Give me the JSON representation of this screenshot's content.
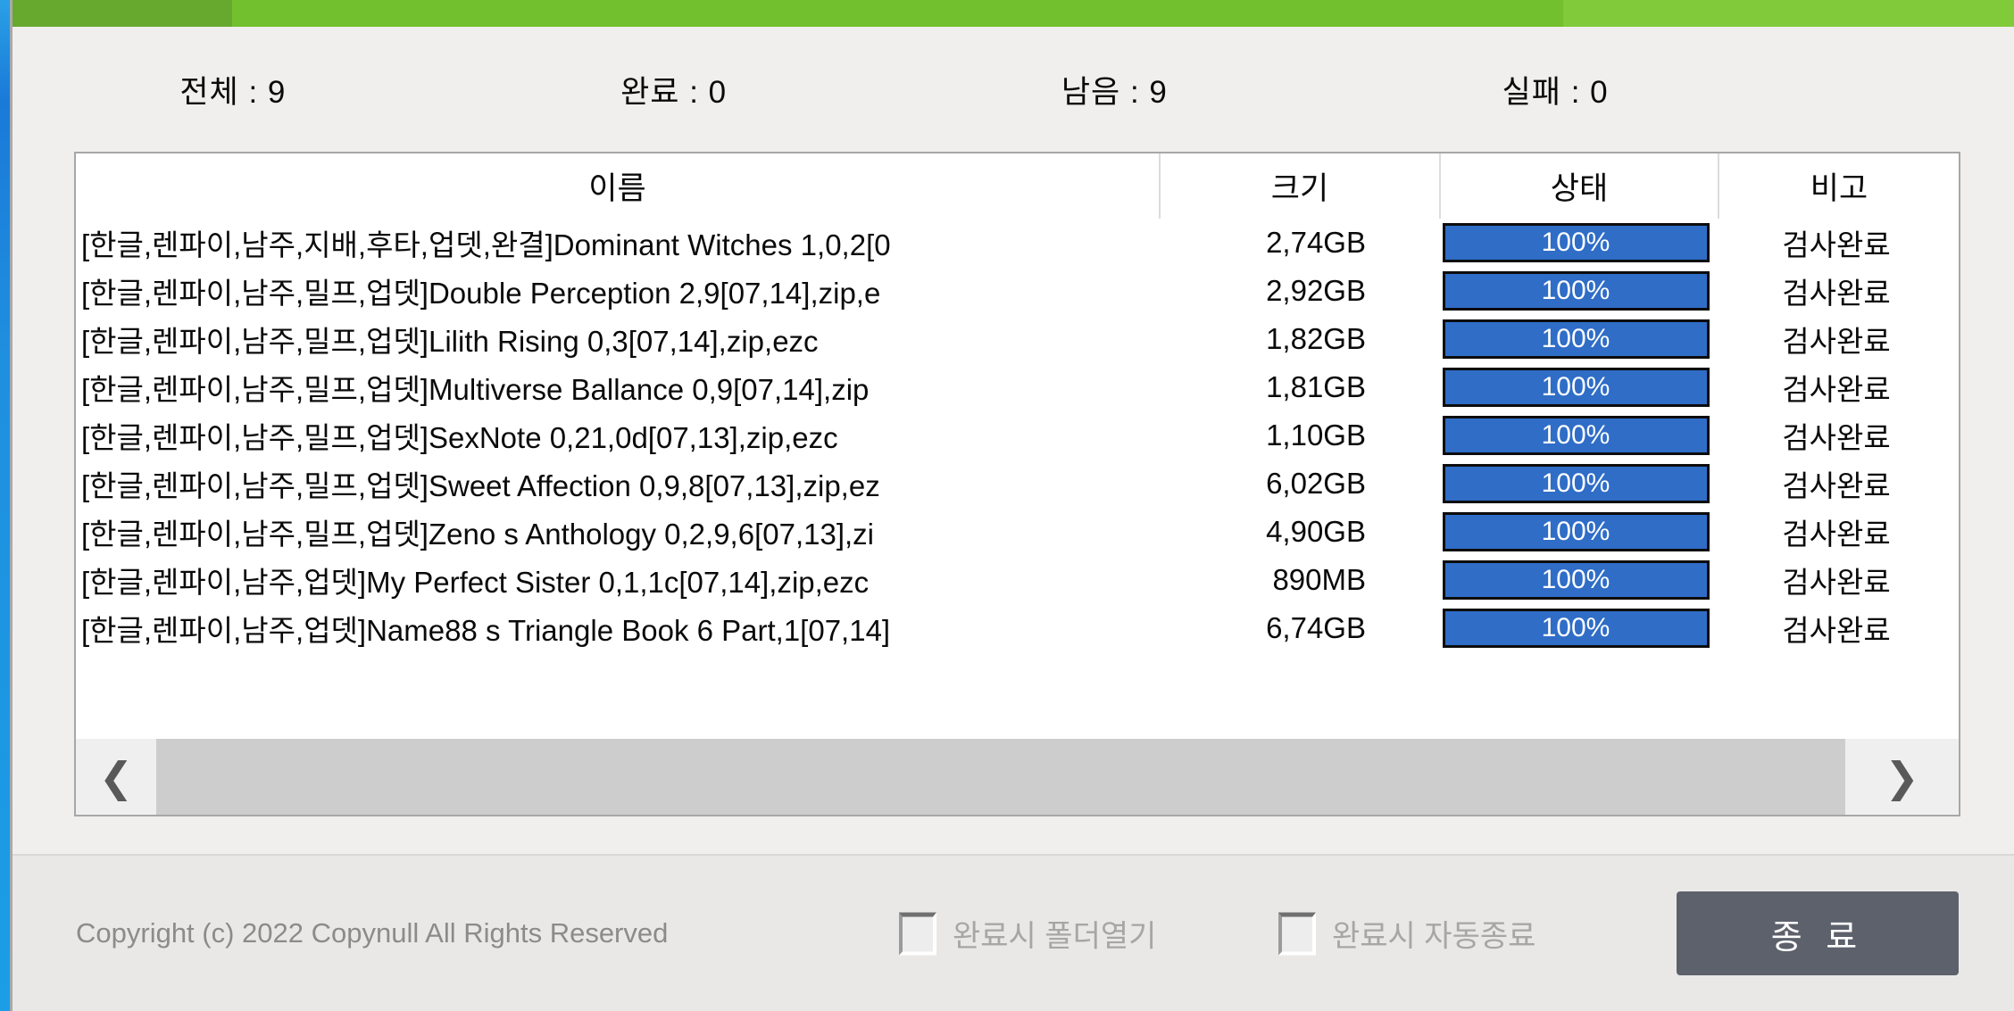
{
  "colors": {
    "topbar_green_dark": "#67a92e",
    "topbar_green_mid": "#73c02e",
    "topbar_green_light": "#81cb3b",
    "left_edge_blue": "#1f8fdf",
    "window_bg": "#f0efee",
    "progress_fill_blue": "#2f6dc7",
    "progress_text": "#ffffff",
    "close_button_bg": "#5d616c",
    "disabled_text_gray": "#a6a6a6",
    "scrollbar_thumb": "#cdcdcd"
  },
  "stats": {
    "items": [
      {
        "key": "total",
        "text": "전체 : 9"
      },
      {
        "key": "done",
        "text": "완료 : 0"
      },
      {
        "key": "remaining",
        "text": "남음 : 9"
      },
      {
        "key": "failed",
        "text": "실패 : 0"
      }
    ]
  },
  "table": {
    "columns": [
      "이름",
      "크기",
      "상태",
      "비고"
    ],
    "rows": [
      {
        "name": "[한글,렌파이,남주,지배,후타,업뎃,완결]Dominant Witches 1,0,2[0",
        "size": "2,74GB",
        "progress": "100%",
        "remark": "검사완료"
      },
      {
        "name": "[한글,렌파이,남주,밀프,업뎃]Double Perception 2,9[07,14],zip,e",
        "size": "2,92GB",
        "progress": "100%",
        "remark": "검사완료"
      },
      {
        "name": "[한글,렌파이,남주,밀프,업뎃]Lilith Rising 0,3[07,14],zip,ezc",
        "size": "1,82GB",
        "progress": "100%",
        "remark": "검사완료"
      },
      {
        "name": "[한글,렌파이,남주,밀프,업뎃]Multiverse Ballance 0,9[07,14],zip",
        "size": "1,81GB",
        "progress": "100%",
        "remark": "검사완료"
      },
      {
        "name": "[한글,렌파이,남주,밀프,업뎃]SexNote 0,21,0d[07,13],zip,ezc",
        "size": "1,10GB",
        "progress": "100%",
        "remark": "검사완료"
      },
      {
        "name": "[한글,렌파이,남주,밀프,업뎃]Sweet Affection 0,9,8[07,13],zip,ez",
        "size": "6,02GB",
        "progress": "100%",
        "remark": "검사완료"
      },
      {
        "name": "[한글,렌파이,남주,밀프,업뎃]Zeno s Anthology 0,2,9,6[07,13],zi",
        "size": "4,90GB",
        "progress": "100%",
        "remark": "검사완료"
      },
      {
        "name": "[한글,렌파이,남주,업뎃]My Perfect Sister 0,1,1c[07,14],zip,ezc",
        "size": "890MB",
        "progress": "100%",
        "remark": "검사완료"
      },
      {
        "name": "[한글,렌파이,남주,업뎃]Name88 s Triangle Book 6 Part,1[07,14]",
        "size": "6,74GB",
        "progress": "100%",
        "remark": "검사완료"
      }
    ]
  },
  "scrollbar": {
    "left_arrow": "❮",
    "right_arrow": "❯"
  },
  "footer": {
    "copyright": "Copyright (c) 2022 Copynull All Rights Reserved",
    "checkboxes": [
      {
        "label": "완료시 폴더열기",
        "checked": false
      },
      {
        "label": "완료시 자동종료",
        "checked": false
      }
    ],
    "close_button": "종 료"
  }
}
